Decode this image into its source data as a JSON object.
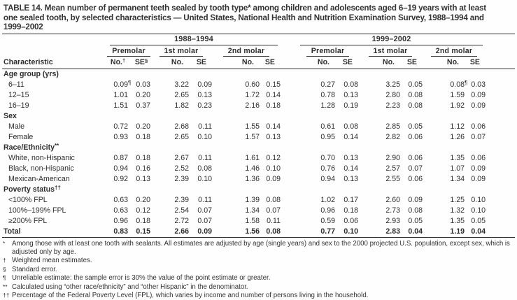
{
  "title_lines": [
    "TABLE 14. Mean number of permanent teeth sealed by tooth type* among children and adolescents aged 6–19 years with at least",
    "one sealed tooth, by selected characteristics — United States, National Health and Nutrition Examination Survey, 1988–1994 and",
    "1999–2002"
  ],
  "table": {
    "characteristic_header": "Characteristic",
    "era_groups": [
      {
        "label": "1988–1994"
      },
      {
        "label": "1999–2002"
      }
    ],
    "tooth_types": [
      "Premolar",
      "1st molar",
      "2nd molar"
    ],
    "subheaders": {
      "no": "No.",
      "se": "SE",
      "no_sup": "†",
      "se_sup": "§"
    },
    "rows": [
      {
        "type": "section",
        "label": "Age group (yrs)",
        "sup": ""
      },
      {
        "type": "data",
        "label": "6–11",
        "values": [
          "0.09¶",
          "0.03",
          "3.22",
          "0.09",
          "0.60",
          "0.15",
          "0.27",
          "0.08",
          "3.25",
          "0.05",
          "0.08¶",
          "0.03"
        ]
      },
      {
        "type": "data",
        "label": "12–15",
        "values": [
          "1.01",
          "0.20",
          "2.65",
          "0.13",
          "1.72",
          "0.14",
          "0.78",
          "0.13",
          "2.80",
          "0.08",
          "1.59",
          "0.09"
        ]
      },
      {
        "type": "data",
        "label": "16–19",
        "values": [
          "1.51",
          "0.37",
          "1.82",
          "0.23",
          "2.16",
          "0.18",
          "1.28",
          "0.19",
          "2.23",
          "0.08",
          "1.92",
          "0.09"
        ]
      },
      {
        "type": "section",
        "label": "Sex",
        "sup": ""
      },
      {
        "type": "data",
        "label": "Male",
        "values": [
          "0.72",
          "0.20",
          "2.68",
          "0.11",
          "1.55",
          "0.14",
          "0.61",
          "0.08",
          "2.85",
          "0.05",
          "1.12",
          "0.06"
        ]
      },
      {
        "type": "data",
        "label": "Female",
        "values": [
          "0.93",
          "0.18",
          "2.65",
          "0.10",
          "1.57",
          "0.13",
          "0.95",
          "0.14",
          "2.82",
          "0.06",
          "1.26",
          "0.07"
        ]
      },
      {
        "type": "section",
        "label": "Race/Ethnicity",
        "sup": "**"
      },
      {
        "type": "data",
        "label": "White, non-Hispanic",
        "values": [
          "0.87",
          "0.18",
          "2.67",
          "0.11",
          "1.61",
          "0.12",
          "0.70",
          "0.13",
          "2.90",
          "0.06",
          "1.35",
          "0.06"
        ]
      },
      {
        "type": "data",
        "label": "Black, non-Hispanic",
        "values": [
          "0.94",
          "0.16",
          "2.52",
          "0.08",
          "1.46",
          "0.10",
          "0.76",
          "0.14",
          "2.57",
          "0.07",
          "1.07",
          "0.09"
        ]
      },
      {
        "type": "data",
        "label": "Mexican-American",
        "values": [
          "0.92",
          "0.13",
          "2.39",
          "0.10",
          "1.36",
          "0.09",
          "0.94",
          "0.13",
          "2.55",
          "0.06",
          "1.34",
          "0.09"
        ]
      },
      {
        "type": "section",
        "label": "Poverty status",
        "sup": "††"
      },
      {
        "type": "data",
        "label": "<100% FPL",
        "values": [
          "0.63",
          "0.20",
          "2.39",
          "0.11",
          "1.39",
          "0.08",
          "1.02",
          "0.17",
          "2.60",
          "0.09",
          "1.25",
          "0.10"
        ]
      },
      {
        "type": "data",
        "label": "100%–199% FPL",
        "values": [
          "0.63",
          "0.12",
          "2.54",
          "0.07",
          "1.34",
          "0.07",
          "0.96",
          "0.18",
          "2.73",
          "0.08",
          "1.32",
          "0.10"
        ]
      },
      {
        "type": "data",
        "label": "≥200% FPL",
        "values": [
          "0.96",
          "0.18",
          "2.72",
          "0.07",
          "1.58",
          "0.11",
          "0.59",
          "0.06",
          "2.93",
          "0.05",
          "1.35",
          "0.05"
        ]
      },
      {
        "type": "total",
        "label": "Total",
        "values": [
          "0.83",
          "0.15",
          "2.66",
          "0.09",
          "1.56",
          "0.08",
          "0.77",
          "0.10",
          "2.83",
          "0.04",
          "1.19",
          "0.04"
        ]
      }
    ]
  },
  "footnotes": [
    {
      "symbol": "*",
      "text": "Among those with at least one tooth with sealants. All estimates are adjusted by age (single years) and sex to the 2000 projected U.S. population, except sex, which is adjusted only by age."
    },
    {
      "symbol": "†",
      "text": "Weighted mean estimates."
    },
    {
      "symbol": "§",
      "text": "Standard error."
    },
    {
      "symbol": "¶",
      "text": "Unreliable estimate: the sample error is 30% the value of the point estimate or greater."
    },
    {
      "symbol": "**",
      "text": "Calculated using “other race/ethnicity” and “other Hispanic” in the denominator."
    },
    {
      "symbol": "††",
      "text": "Percentage of the Federal Poverty Level (FPL), which varies by income and number of persons living in the household."
    }
  ]
}
